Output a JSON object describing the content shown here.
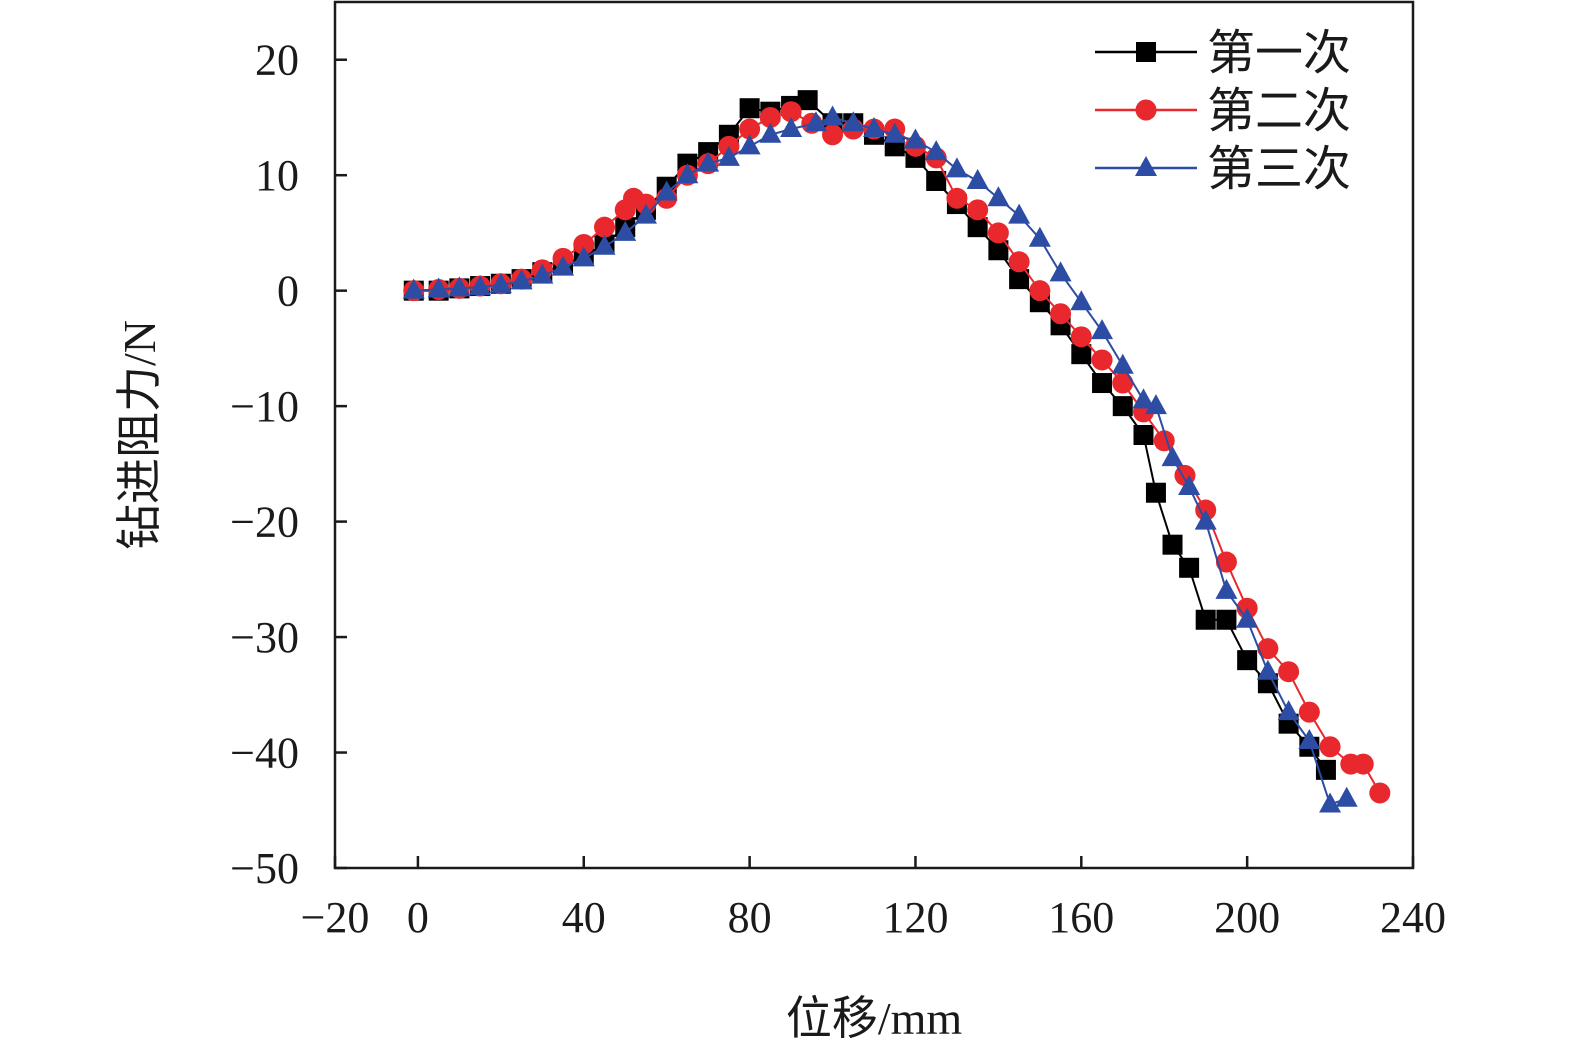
{
  "chart_data": {
    "type": "line",
    "title": "",
    "xlabel": "位移/mm",
    "ylabel": "钻进阻力/N",
    "xlim": [
      -20,
      240
    ],
    "ylim": [
      -50,
      25
    ],
    "xticks": [
      -20,
      0,
      40,
      80,
      120,
      160,
      200,
      240
    ],
    "yticks": [
      -50,
      -40,
      -30,
      -20,
      -10,
      0,
      10,
      20
    ],
    "xtick_labels": [
      "−20",
      "0",
      "40",
      "80",
      "120",
      "160",
      "200",
      "240"
    ],
    "ytick_labels": [
      "−50",
      "−40",
      "−30",
      "−20",
      "−10",
      "0",
      "10",
      "20"
    ],
    "grid": false,
    "legend_position": "top-right",
    "series": [
      {
        "name": "第一次",
        "color": "#000000",
        "marker": "square",
        "x": [
          -1,
          5,
          10,
          15,
          20,
          25,
          30,
          35,
          40,
          45,
          50,
          55,
          60,
          65,
          70,
          75,
          80,
          85,
          90,
          94,
          100,
          105,
          110,
          115,
          120,
          125,
          130,
          135,
          140,
          145,
          150,
          155,
          160,
          165,
          170,
          175,
          178,
          182,
          186,
          190,
          195,
          200,
          205,
          210,
          215,
          219
        ],
        "y": [
          0,
          0,
          0.2,
          0.4,
          0.6,
          1,
          1.6,
          2.2,
          3,
          4,
          5.5,
          7,
          9,
          11,
          12,
          13.5,
          15.8,
          15.5,
          16,
          16.5,
          14.5,
          14.5,
          13.5,
          12.5,
          11.5,
          9.5,
          7.5,
          5.5,
          3.5,
          1,
          -1,
          -3,
          -5.5,
          -8,
          -10,
          -12.5,
          -17.5,
          -22,
          -24,
          -28.5,
          -28.5,
          -32,
          -34,
          -37.5,
          -39.5,
          -41.5
        ]
      },
      {
        "name": "第二次",
        "color": "#e8282d",
        "marker": "circle",
        "x": [
          -1,
          5,
          10,
          15,
          20,
          25,
          30,
          35,
          40,
          45,
          50,
          52,
          55,
          60,
          65,
          70,
          75,
          80,
          85,
          90,
          95,
          100,
          105,
          110,
          115,
          120,
          125,
          130,
          135,
          140,
          145,
          150,
          155,
          160,
          165,
          170,
          175,
          180,
          185,
          190,
          195,
          200,
          205,
          210,
          215,
          220,
          225,
          228,
          232
        ],
        "y": [
          0,
          0.1,
          0.2,
          0.4,
          0.6,
          1,
          1.8,
          2.8,
          4,
          5.5,
          7,
          8,
          7.5,
          8,
          10,
          11,
          12.5,
          14,
          15,
          15.5,
          14.5,
          13.5,
          14,
          14,
          14,
          12.5,
          11.5,
          8,
          7,
          5,
          2.5,
          0,
          -2,
          -4,
          -6,
          -8,
          -10.5,
          -13,
          -16,
          -19,
          -23.5,
          -27.5,
          -31,
          -33,
          -36.5,
          -39.5,
          -41,
          -41,
          -43.5
        ]
      },
      {
        "name": "第三次",
        "color": "#2c4da3",
        "marker": "triangle",
        "x": [
          -1,
          5,
          10,
          15,
          20,
          25,
          30,
          35,
          40,
          45,
          50,
          55,
          60,
          65,
          70,
          75,
          80,
          85,
          90,
          96,
          100,
          105,
          110,
          115,
          120,
          125,
          130,
          135,
          140,
          145,
          150,
          155,
          160,
          165,
          170,
          175,
          178,
          182,
          186,
          190,
          195,
          200,
          205,
          210,
          215,
          220,
          224
        ],
        "y": [
          0,
          0.1,
          0.2,
          0.3,
          0.5,
          0.8,
          1.3,
          2,
          2.8,
          3.8,
          5,
          6.5,
          8.5,
          10,
          11,
          11.5,
          12.5,
          13.5,
          14,
          14.5,
          15,
          14.5,
          14,
          13.5,
          13,
          12,
          10.5,
          9.5,
          8,
          6.5,
          4.5,
          1.5,
          -1,
          -3.5,
          -6.5,
          -9.5,
          -10,
          -14.5,
          -17,
          -20,
          -26,
          -28.5,
          -33,
          -36.5,
          -39,
          -44.5,
          -44
        ]
      }
    ]
  }
}
